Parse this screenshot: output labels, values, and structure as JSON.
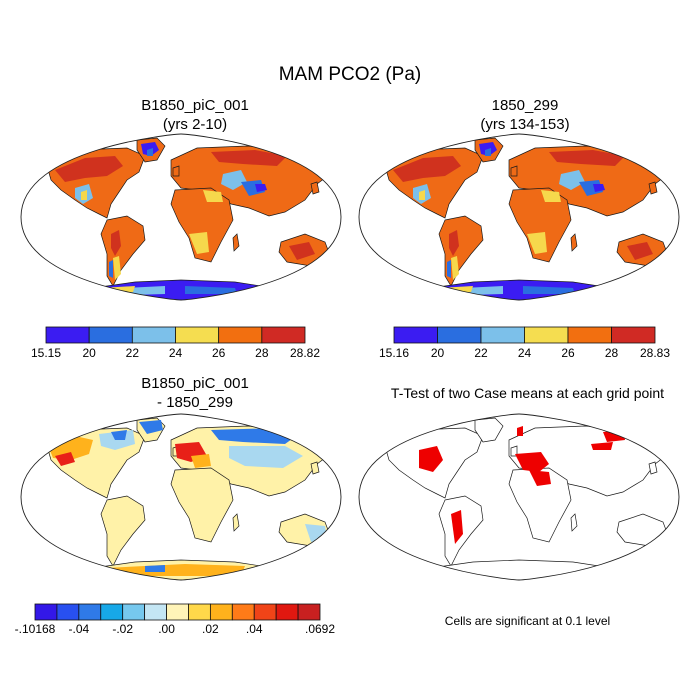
{
  "title": "MAM PCO2 (Pa)",
  "panels": [
    {
      "id": "case1",
      "title_line1": "B1850_piC_001",
      "title_line2": "(yrs 2-10)"
    },
    {
      "id": "case2",
      "title_line1": "1850_299",
      "title_line2": "(yrs 134-153)"
    },
    {
      "id": "diff",
      "title_line1": "B1850_piC_001",
      "title_line2": "- 1850_299"
    },
    {
      "id": "ttest",
      "title_line1": "T-Test of two Case means at each grid point"
    }
  ],
  "colorbars": {
    "case1": {
      "colors": [
        "#3b1cf2",
        "#2a6ee0",
        "#7cc0ea",
        "#f5dd50",
        "#f26f10",
        "#d02a24"
      ],
      "labels": [
        "15.15",
        "20",
        "22",
        "24",
        "26",
        "28",
        "28.82"
      ]
    },
    "case2": {
      "colors": [
        "#3b1cf2",
        "#2a6ee0",
        "#7cc0ea",
        "#f5dd50",
        "#f26f10",
        "#d02a24"
      ],
      "labels": [
        "15.16",
        "20",
        "22",
        "24",
        "26",
        "28",
        "28.83"
      ]
    },
    "diff": {
      "colors": [
        "#3318e8",
        "#2850f0",
        "#2f7ae8",
        "#17a8e8",
        "#76c8ee",
        "#c4e6f4",
        "#fff4b8",
        "#ffd84a",
        "#ffb21c",
        "#ff7b18",
        "#f04418",
        "#e01810",
        "#c82020"
      ],
      "labels": [
        "-.10168",
        "-.04",
        "-.02",
        ".00",
        ".02",
        ".04",
        ".0692"
      ],
      "label_slots": [
        0,
        2,
        4,
        6,
        8,
        10,
        13
      ]
    }
  },
  "footnote": "Cells are significant at 0.1 level",
  "map_colors": {
    "case_land": "#ef6a16",
    "case_dark": "#d0321e",
    "case_yellow": "#f6d84c",
    "case_lightblue": "#7cc0ea",
    "case_blue": "#2a6ee0",
    "case_violet": "#3b1cf2",
    "diff_land": "#fff2a8",
    "diff_orange": "#ffb21c",
    "diff_red": "#e82018",
    "diff_blue": "#2f7ae8",
    "diff_lightblue": "#a9d8f0",
    "sig": "#ee0000"
  }
}
